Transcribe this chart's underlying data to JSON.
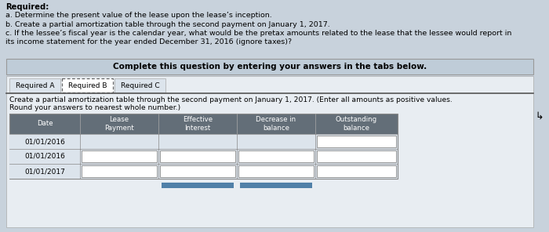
{
  "title_text": "Required:",
  "lines": [
    "a. Determine the present value of the lease upon the lease’s inception.",
    "b. Create a partial amortization table through the second payment on January 1, 2017.",
    "c. If the lessee’s fiscal year is the calendar year, what would be the pretax amounts related to the lease that the lessee would report in",
    "its income statement for the year ended December 31, 2016 (ignore taxes)?"
  ],
  "banner_text": "Complete this question by entering your answers in the tabs below.",
  "tab_labels": [
    "Required A",
    "Required B",
    "Required C"
  ],
  "active_tab": 1,
  "instruction_text": "Create a partial amortization table through the second payment on January 1, 2017. (Enter all amounts as positive values.",
  "instruction_text2": "Round your answers to nearest whole number.)",
  "col_headers": [
    "Date",
    "Lease\nPayment",
    "Effective\nInterest",
    "Decrease in\nbalance",
    "Outstanding\nbalance"
  ],
  "rows": [
    [
      "01/01/2016",
      false,
      false,
      false,
      true
    ],
    [
      "01/01/2016",
      true,
      true,
      true,
      true
    ],
    [
      "01/01/2017",
      true,
      true,
      true,
      true
    ]
  ],
  "header_bg": "#636e78",
  "header_fg": "#ffffff",
  "banner_bg": "#bfccd8",
  "outer_bg": "#c8d2dc",
  "white_panel_bg": "#e8edf2",
  "tab_active_bg": "#ffffff",
  "tab_inactive_bg": "#dce4ec",
  "row_bg1": "#dce4ec",
  "row_bg2": "#dce4ec",
  "input_bg": "#ffffff",
  "input_border": "#888888",
  "bottom_btn_color": "#5080a8",
  "table_border": "#888888"
}
